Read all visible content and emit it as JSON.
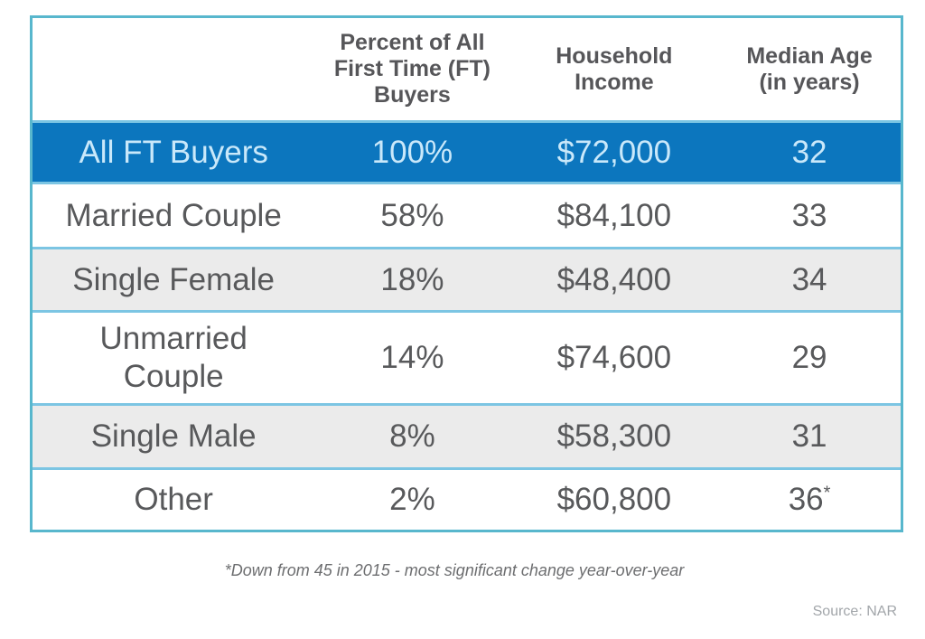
{
  "table": {
    "headers": {
      "col1": "",
      "col2": "Percent of All\nFirst Time (FT)\nBuyers",
      "col3": "Household\nIncome",
      "col4": "Median Age\n(in years)"
    },
    "rows": [
      {
        "label": "All FT Buyers",
        "percent": "100%",
        "income": "$72,000",
        "age": "32",
        "age_note": ""
      },
      {
        "label": "Married Couple",
        "percent": "58%",
        "income": "$84,100",
        "age": "33",
        "age_note": ""
      },
      {
        "label": "Single Female",
        "percent": "18%",
        "income": "$48,400",
        "age": "34",
        "age_note": ""
      },
      {
        "label": "Unmarried\nCouple",
        "percent": "14%",
        "income": "$74,600",
        "age": "29",
        "age_note": ""
      },
      {
        "label": "Single Male",
        "percent": "8%",
        "income": "$58,300",
        "age": "31",
        "age_note": ""
      },
      {
        "label": "Other",
        "percent": "2%",
        "income": "$60,800",
        "age": "36",
        "age_note": "*"
      }
    ]
  },
  "footnote": "*Down from 45 in 2015 - most significant change year-over-year",
  "source": "Source: NAR",
  "colors": {
    "highlight_row_bg": "#0c76be",
    "highlight_row_text": "#c9e8fa",
    "alt_row_bg": "#ebebeb",
    "outer_border": "#58b7cd",
    "inner_divider": "#7cc5e3",
    "header_text": "#565659",
    "body_text": "#58595b"
  },
  "chart_data": {
    "type": "table",
    "title": "",
    "columns": [
      "",
      "Percent of All First Time (FT) Buyers",
      "Household Income",
      "Median Age (in years)"
    ],
    "rows": [
      [
        "All FT Buyers",
        "100%",
        "$72,000",
        "32"
      ],
      [
        "Married Couple",
        "58%",
        "$84,100",
        "33"
      ],
      [
        "Single Female",
        "18%",
        "$48,400",
        "34"
      ],
      [
        "Unmarried Couple",
        "14%",
        "$74,600",
        "29"
      ],
      [
        "Single Male",
        "8%",
        "$58,300",
        "31"
      ],
      [
        "Other",
        "2%",
        "$60,800",
        "36*"
      ]
    ],
    "percent_values": [
      100,
      58,
      18,
      14,
      8,
      2
    ],
    "income_values": [
      72000,
      84100,
      48400,
      74600,
      58300,
      60800
    ],
    "median_age_values": [
      32,
      33,
      34,
      29,
      31,
      36
    ],
    "footnote": "*Down from 45 in 2015 - most significant change year-over-year",
    "source": "NAR"
  }
}
